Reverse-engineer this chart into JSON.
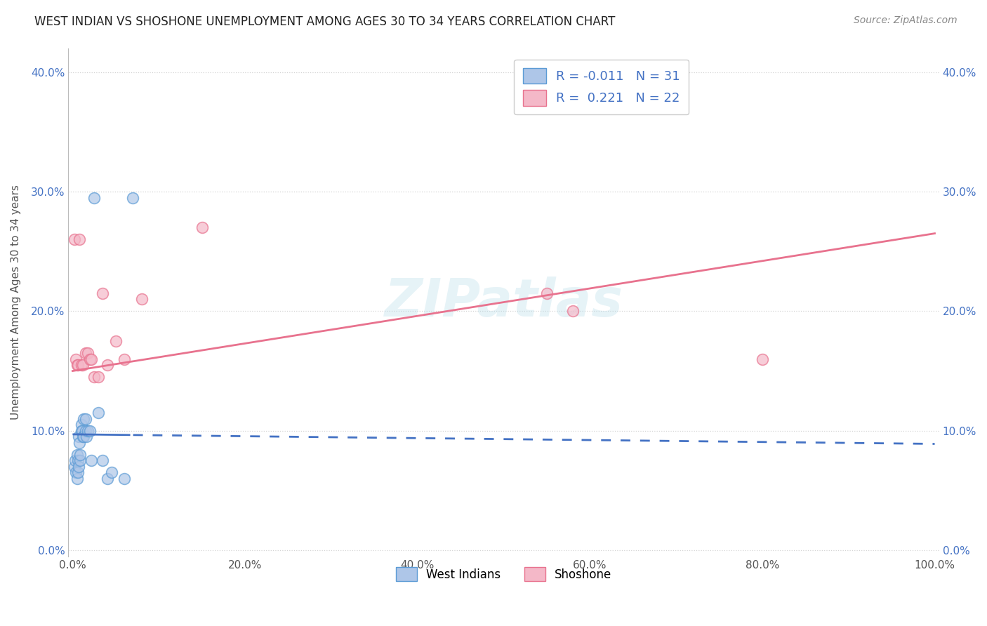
{
  "title": "WEST INDIAN VS SHOSHONE UNEMPLOYMENT AMONG AGES 30 TO 34 YEARS CORRELATION CHART",
  "source": "Source: ZipAtlas.com",
  "ylabel": "Unemployment Among Ages 30 to 34 years",
  "xlabel_ticks": [
    "0.0%",
    "20.0%",
    "40.0%",
    "60.0%",
    "80.0%",
    "100.0%"
  ],
  "ylabel_ticks": [
    "0.0%",
    "10.0%",
    "20.0%",
    "30.0%",
    "40.0%"
  ],
  "xlim": [
    -0.005,
    1.005
  ],
  "ylim": [
    -0.005,
    0.42
  ],
  "legend_R_N_labels": [
    "R = -0.011   N = 31",
    "R =  0.221   N = 22"
  ],
  "legend_labels": [
    "West Indians",
    "Shoshone"
  ],
  "blue_fill": "#aec6e8",
  "blue_edge": "#5b9bd5",
  "pink_fill": "#f4b8c8",
  "pink_edge": "#e8728e",
  "blue_line": "#4472c4",
  "pink_line": "#e8728e",
  "west_indian_x": [
    0.002,
    0.003,
    0.004,
    0.005,
    0.005,
    0.006,
    0.006,
    0.007,
    0.007,
    0.008,
    0.009,
    0.009,
    0.01,
    0.01,
    0.011,
    0.012,
    0.013,
    0.013,
    0.015,
    0.015,
    0.016,
    0.018,
    0.02,
    0.022,
    0.025,
    0.03,
    0.035,
    0.04,
    0.045,
    0.06,
    0.07
  ],
  "west_indian_y": [
    0.07,
    0.075,
    0.065,
    0.06,
    0.08,
    0.075,
    0.065,
    0.07,
    0.095,
    0.09,
    0.075,
    0.08,
    0.105,
    0.1,
    0.1,
    0.095,
    0.095,
    0.11,
    0.1,
    0.11,
    0.095,
    0.1,
    0.1,
    0.075,
    0.295,
    0.115,
    0.075,
    0.06,
    0.065,
    0.06,
    0.295
  ],
  "shoshone_x": [
    0.002,
    0.004,
    0.005,
    0.006,
    0.008,
    0.01,
    0.012,
    0.015,
    0.018,
    0.02,
    0.022,
    0.025,
    0.03,
    0.035,
    0.04,
    0.05,
    0.06,
    0.08,
    0.15,
    0.55,
    0.58,
    0.8
  ],
  "shoshone_y": [
    0.26,
    0.16,
    0.155,
    0.155,
    0.26,
    0.155,
    0.155,
    0.165,
    0.165,
    0.16,
    0.16,
    0.145,
    0.145,
    0.215,
    0.155,
    0.175,
    0.16,
    0.21,
    0.27,
    0.215,
    0.2,
    0.16
  ],
  "background_color": "#ffffff",
  "grid_color": "#d0d0d0",
  "wi_regression_intercept": 0.097,
  "wi_regression_slope": -0.008,
  "sh_regression_intercept": 0.15,
  "sh_regression_slope": 0.115
}
